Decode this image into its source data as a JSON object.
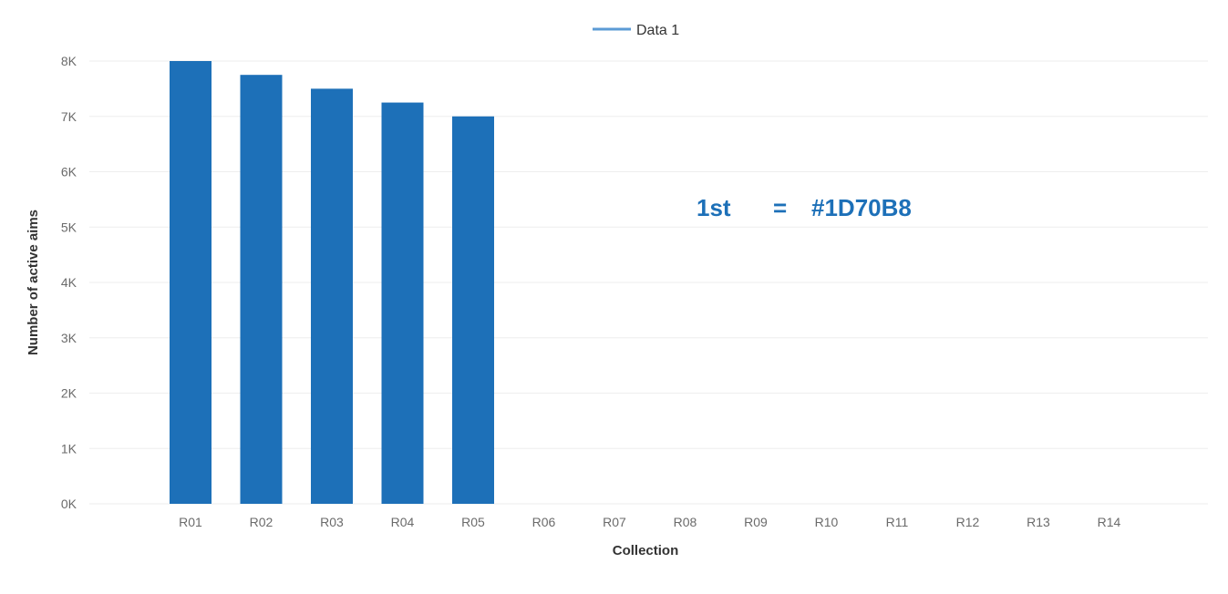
{
  "chart_data": {
    "type": "bar",
    "categories": [
      "R01",
      "R02",
      "R03",
      "R04",
      "R05",
      "R06",
      "R07",
      "R08",
      "R09",
      "R10",
      "R11",
      "R12",
      "R13",
      "R14"
    ],
    "series": [
      {
        "name": "Data 1",
        "values": [
          8000,
          7750,
          7500,
          7250,
          7000,
          null,
          null,
          null,
          null,
          null,
          null,
          null,
          null,
          null
        ]
      }
    ],
    "xlabel": "Collection",
    "ylabel": "Number of active aims",
    "ylim": [
      0,
      8000
    ],
    "yticks": [
      "0K",
      "1K",
      "2K",
      "3K",
      "4K",
      "5K",
      "6K",
      "7K",
      "8K"
    ],
    "grid": true,
    "legend_position": "top-center",
    "annotation": {
      "label": "1st",
      "eq": "=",
      "value": "#1D70B8"
    },
    "colors": {
      "bar": "#1D70B8",
      "legend_line": "#5B9BD5"
    }
  }
}
